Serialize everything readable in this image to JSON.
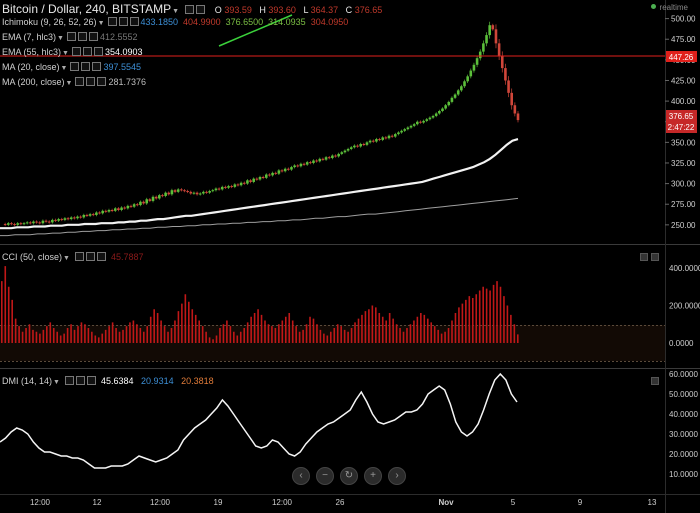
{
  "header": {
    "symbol_title": "Bitcoin / Dollar, 240, BITSTAMP",
    "ohlc": {
      "o_label": "O",
      "o": "393.59",
      "h_label": "H",
      "h": "393.60",
      "l_label": "L",
      "l": "364.37",
      "c_label": "C",
      "c": "376.65"
    },
    "realtime_label": "realtime"
  },
  "indicators": [
    {
      "label": "Ichimoku (9, 26, 52, 26)",
      "values": [
        {
          "v": "433.1850",
          "color": "#3d8fd6"
        },
        {
          "v": "404.9900",
          "color": "#c0392b"
        },
        {
          "v": "376.6500",
          "color": "#7bbf44"
        },
        {
          "v": "314.0935",
          "color": "#7bbf44"
        },
        {
          "v": "304.0950",
          "color": "#c0392b"
        }
      ]
    },
    {
      "label": "EMA (7, hlc3)",
      "values": [
        {
          "v": "412.5552",
          "color": "#777777"
        }
      ]
    },
    {
      "label": "EMA (55, hlc3)",
      "values": [
        {
          "v": "354.0903",
          "color": "#ffffff"
        }
      ]
    },
    {
      "label": "MA (20, close)",
      "values": [
        {
          "v": "397.5545",
          "color": "#3d8fd6"
        }
      ]
    },
    {
      "label": "MA (200, close)",
      "values": [
        {
          "v": "281.7376",
          "color": "#bdbdbd"
        }
      ]
    }
  ],
  "cci_panel": {
    "label": "CCI (50, close)",
    "value": "45.7887",
    "value_color": "#8b1a1a"
  },
  "dmi_panel": {
    "label": "DMI (14, 14)",
    "values": [
      {
        "v": "45.6384",
        "color": "#ffffff"
      },
      {
        "v": "20.9314",
        "color": "#3d8fd6"
      },
      {
        "v": "20.3818",
        "color": "#e07b39"
      }
    ]
  },
  "price_badges": {
    "last_price": "376.65",
    "countdown": "2:47:22",
    "hline": "447.26"
  },
  "chart_data": {
    "type": "line",
    "price_axis": {
      "ylim": [
        228,
        508
      ],
      "ticks": [
        "500.00",
        "475.00",
        "450.00",
        "425.00",
        "400.00",
        "375.00",
        "350.00",
        "325.00",
        "300.00",
        "275.00",
        "250.00"
      ]
    },
    "cci_axis": {
      "ticks": [
        "400.0000",
        "200.0000",
        "0.0000"
      ]
    },
    "dmi_axis": {
      "ticks": [
        "60.0000",
        "50.0000",
        "40.0000",
        "30.0000",
        "20.0000",
        "10.0000"
      ]
    },
    "x_ticks": [
      "12:00",
      "12",
      "12:00",
      "19",
      "12:00",
      "26",
      "Nov",
      "5",
      "9",
      "13"
    ],
    "close_series": [
      251,
      250,
      252,
      251,
      250,
      252,
      251,
      252,
      253,
      252,
      254,
      253,
      252,
      255,
      254,
      253,
      256,
      255,
      257,
      256,
      258,
      257,
      259,
      258,
      260,
      259,
      262,
      261,
      263,
      262,
      265,
      264,
      267,
      266,
      268,
      267,
      270,
      268,
      271,
      270,
      273,
      272,
      275,
      274,
      278,
      276,
      281,
      279,
      284,
      282,
      286,
      285,
      289,
      287,
      292,
      290,
      293,
      292,
      291,
      290,
      288,
      289,
      287,
      288,
      290,
      289,
      291,
      292,
      294,
      293,
      296,
      295,
      297,
      296,
      299,
      298,
      301,
      300,
      304,
      302,
      306,
      305,
      308,
      307,
      311,
      310,
      313,
      312,
      316,
      315,
      318,
      317,
      320,
      322,
      321,
      324,
      323,
      326,
      325,
      328,
      327,
      330,
      329,
      332,
      331,
      334,
      333,
      336,
      338,
      340,
      342,
      344,
      346,
      345,
      348,
      347,
      350,
      352,
      351,
      354,
      353,
      356,
      355,
      358,
      357,
      360,
      362,
      364,
      366,
      368,
      370,
      372,
      375,
      374,
      376,
      378,
      380,
      382,
      385,
      388,
      391,
      395,
      399,
      404,
      408,
      413,
      418,
      424,
      430,
      437,
      444,
      452,
      460,
      470,
      480,
      492,
      487,
      470,
      455,
      440,
      425,
      410,
      395,
      385,
      377
    ],
    "ema55": [
      246,
      246,
      246,
      247,
      247,
      247,
      248,
      248,
      248,
      249,
      249,
      249,
      250,
      250,
      250,
      251,
      251,
      251,
      252,
      252,
      252,
      253,
      253,
      254,
      254,
      255,
      255,
      256,
      257,
      257,
      258,
      259,
      260,
      261,
      261,
      262,
      263,
      264,
      265,
      266,
      267,
      268,
      269,
      270,
      271,
      272,
      273,
      274,
      275,
      276,
      277,
      278,
      279,
      280,
      281,
      282,
      283,
      284,
      285,
      286,
      287,
      288,
      289,
      290,
      291,
      292,
      293,
      294,
      295,
      296,
      297,
      298,
      299,
      300,
      301,
      302,
      304,
      306,
      308,
      310,
      312,
      314,
      316,
      318,
      320,
      323,
      326,
      330,
      335,
      341,
      347,
      352,
      354
    ],
    "ma200": [
      237,
      237,
      238,
      238,
      238,
      239,
      239,
      240,
      240,
      241,
      241,
      242,
      242,
      243,
      243,
      244,
      244,
      245,
      245,
      246,
      246,
      247,
      247,
      248,
      248,
      249,
      249,
      250,
      250,
      251,
      251,
      252,
      252,
      253,
      253,
      254,
      254,
      255,
      255,
      256,
      256,
      257,
      258,
      258,
      259,
      260,
      260,
      261,
      262,
      263,
      263,
      264,
      265,
      266,
      267,
      268,
      269,
      270,
      271,
      272,
      273,
      274,
      275,
      276,
      277,
      278,
      279,
      280,
      281,
      282
    ],
    "cci_values": [
      330,
      410,
      300,
      230,
      130,
      90,
      60,
      80,
      100,
      70,
      60,
      50,
      70,
      90,
      110,
      80,
      60,
      40,
      50,
      80,
      100,
      70,
      90,
      110,
      100,
      80,
      60,
      40,
      30,
      50,
      70,
      90,
      110,
      80,
      60,
      70,
      90,
      110,
      120,
      100,
      80,
      60,
      90,
      140,
      180,
      160,
      120,
      90,
      60,
      80,
      120,
      170,
      210,
      260,
      220,
      180,
      150,
      120,
      90,
      60,
      30,
      20,
      40,
      80,
      100,
      120,
      90,
      60,
      40,
      60,
      80,
      110,
      140,
      160,
      180,
      150,
      120,
      100,
      90,
      80,
      100,
      120,
      140,
      160,
      120,
      90,
      60,
      70,
      100,
      140,
      130,
      100,
      70,
      50,
      40,
      60,
      80,
      100,
      90,
      70,
      60,
      80,
      110,
      130,
      150,
      170,
      180,
      200,
      190,
      160,
      140,
      120,
      160,
      130,
      100,
      80,
      60,
      80,
      100,
      120,
      140,
      160,
      150,
      130,
      110,
      90,
      70,
      50,
      60,
      80,
      120,
      160,
      190,
      210,
      230,
      250,
      240,
      260,
      280,
      300,
      290,
      280,
      310,
      330,
      300,
      250,
      200,
      150,
      100,
      46
    ],
    "dmi_adx": [
      26,
      28,
      31,
      33,
      32,
      30,
      26,
      23,
      21,
      21,
      20,
      19,
      19,
      18,
      18,
      17,
      15,
      13,
      13,
      13,
      14,
      14,
      14,
      15,
      17,
      19,
      18,
      17,
      16,
      17,
      18,
      20,
      22,
      27,
      30,
      33,
      35,
      37,
      40,
      43,
      47,
      44,
      40,
      36,
      32,
      28,
      24,
      23,
      24,
      27,
      26,
      23,
      20,
      19,
      21,
      25,
      28,
      31,
      33,
      35,
      36,
      38,
      40,
      42,
      47,
      51,
      46,
      40,
      36,
      35,
      36,
      37,
      39,
      41,
      41,
      42,
      45,
      50,
      52,
      54,
      52,
      45,
      36,
      31,
      29,
      31,
      35,
      42,
      50,
      57,
      60,
      57,
      50,
      46
    ]
  }
}
